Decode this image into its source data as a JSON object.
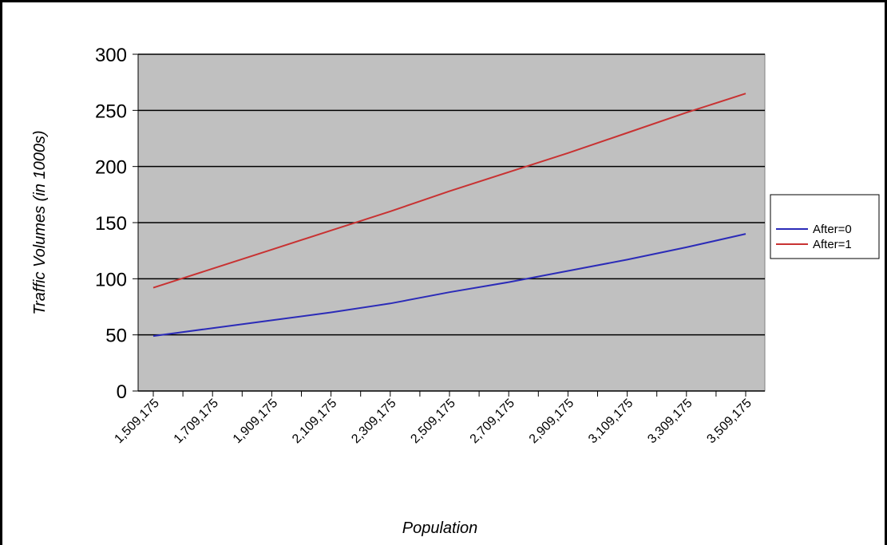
{
  "chart_data": {
    "type": "line",
    "title": "",
    "xlabel": "Population",
    "ylabel": "Traffic Volumes (in 1000s)",
    "ylim": [
      0,
      300
    ],
    "yticks": [
      "0",
      "50",
      "100",
      "150",
      "200",
      "250",
      "300"
    ],
    "xticks": [
      "1,509,175",
      "1,709,175",
      "1,909,175",
      "2,109,175",
      "2,309,175",
      "2,509,175",
      "2,709,175",
      "2,909,175",
      "3,109,175",
      "3,309,175",
      "3,509,175"
    ],
    "x": [
      1509175,
      1709175,
      1909175,
      2109175,
      2309175,
      2509175,
      2709175,
      2909175,
      3109175,
      3309175,
      3509175
    ],
    "series": [
      {
        "name": "After=0",
        "color": "#2b2bb8",
        "values": [
          49,
          56,
          63,
          70,
          78,
          88,
          97,
          107,
          117,
          128,
          140
        ]
      },
      {
        "name": "After=1",
        "color": "#c83232",
        "values": [
          92,
          109,
          126,
          143,
          160,
          178,
          195,
          212,
          230,
          248,
          265
        ]
      }
    ],
    "grid": true,
    "plot_background": "#c0c0c0",
    "legend_position": "right"
  }
}
